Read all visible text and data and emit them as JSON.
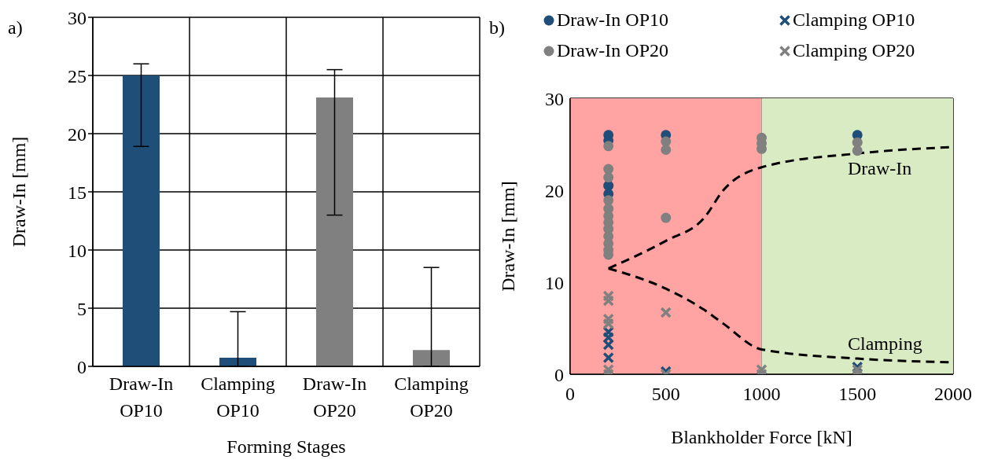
{
  "chart_data": [
    {
      "type": "bar",
      "title": "a)",
      "xlabel": "Forming Stages",
      "ylabel": "Draw-In [mm]",
      "categories": [
        "Draw-In OP10",
        "Clamping OP10",
        "Draw-In OP20",
        "Clamping OP20"
      ],
      "values": [
        25,
        0.75,
        23.1,
        1.4
      ],
      "colors": [
        "#1f4e79",
        "#1f4e79",
        "#808080",
        "#808080"
      ],
      "errors": [
        [
          18.9,
          26
        ],
        [
          0,
          4.7
        ],
        [
          13,
          25.5
        ],
        [
          0,
          8.5
        ]
      ],
      "ylim": [
        0,
        30
      ],
      "yticks": [
        0,
        5,
        10,
        15,
        20,
        25,
        30
      ],
      "grid": true
    },
    {
      "type": "scatter",
      "title": "b)",
      "xlabel": "Blankholder Force [kN]",
      "ylabel": "Draw-In [mm]",
      "xlim": [
        0,
        2000
      ],
      "xticks": [
        0,
        500,
        1000,
        1500,
        2000
      ],
      "ylim": [
        0,
        30
      ],
      "yticks": [
        0,
        10,
        20,
        30
      ],
      "grid": true,
      "legend": "top",
      "bands": [
        {
          "axis": "x",
          "from": 0,
          "to": 1000,
          "color": "#ffa3a3"
        },
        {
          "axis": "x",
          "from": 1000,
          "to": 2000,
          "color": "#d9ebc3"
        }
      ],
      "annotations": [
        "Draw-In",
        "Clamping"
      ],
      "series": [
        {
          "name": "Draw-In OP10",
          "color": "#1f4e79",
          "marker": "circle",
          "x": [
            200,
            200,
            200,
            200,
            500,
            1500
          ],
          "values": [
            26,
            25.4,
            20.5,
            19.6,
            26,
            26
          ]
        },
        {
          "name": "Clamping OP10",
          "color": "#1f4e79",
          "marker": "cross",
          "x": [
            200,
            200,
            200,
            200,
            500,
            1500
          ],
          "values": [
            4.6,
            4,
            3.2,
            1.8,
            0.3,
            0.8
          ]
        },
        {
          "name": "Draw-In OP20",
          "color": "#808080",
          "marker": "circle",
          "x": [
            200,
            200,
            200,
            200,
            200,
            200,
            200,
            200,
            200,
            200,
            200,
            200,
            500,
            500,
            500,
            1000,
            1000,
            1000,
            1500,
            1500
          ],
          "values": [
            24.8,
            22.3,
            21.4,
            18.9,
            18,
            17.2,
            16.5,
            15.8,
            15,
            14.2,
            13.5,
            13,
            25.3,
            24.4,
            17,
            25.7,
            25.1,
            24.5,
            25.2,
            24.3
          ]
        },
        {
          "name": "Clamping OP20",
          "color": "#808080",
          "marker": "cross",
          "x": [
            200,
            200,
            200,
            200,
            200,
            200,
            500,
            500,
            1000,
            1000,
            1500,
            1500
          ],
          "values": [
            8.5,
            8,
            6,
            5.5,
            0.5,
            0,
            6.7,
            0,
            0.5,
            0,
            0.5,
            0
          ]
        },
        {
          "type": "line",
          "color": "#000000",
          "line_style": "dashed",
          "marker": "none",
          "x": [
            200,
            500,
            700,
            800,
            1000,
            1500,
            2000
          ],
          "values": [
            11.5,
            14.5,
            17,
            20,
            22.5,
            24,
            24.7
          ]
        },
        {
          "type": "line",
          "color": "#000000",
          "line_style": "dashed",
          "marker": "none",
          "x": [
            200,
            500,
            700,
            800,
            1000,
            1500,
            2000
          ],
          "values": [
            11.5,
            9.3,
            7,
            5.5,
            2.7,
            1.7,
            1.3
          ]
        }
      ]
    }
  ]
}
